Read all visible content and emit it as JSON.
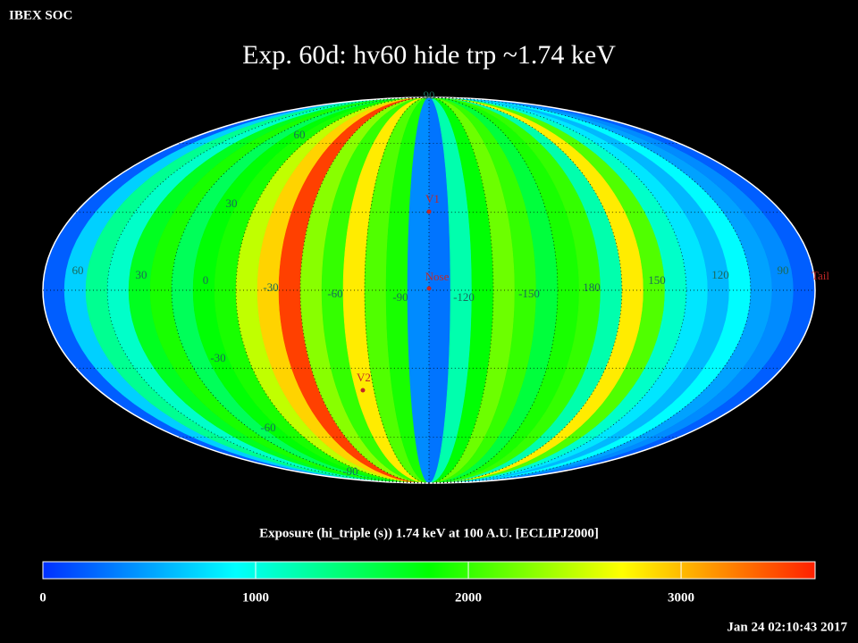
{
  "header": {
    "source": "IBEX SOC",
    "title": "Exp.   60d: hv60 hide trp ~1.74 keV",
    "timestamp": "Jan 24 02:10:43 2017"
  },
  "map": {
    "band_values": [
      200,
      700,
      1300,
      1100,
      1700,
      1900,
      1500,
      1800,
      1900,
      2500,
      2900,
      3500,
      2300,
      2000,
      2800,
      2100,
      1900,
      400,
      300,
      1200,
      1800,
      2200,
      2000,
      1600,
      1900,
      2000,
      1200,
      2800,
      2100,
      1100,
      800,
      600,
      900,
      500,
      400,
      200
    ],
    "longitude_labels": [
      "60",
      "30",
      "0",
      "-30",
      "-60",
      "-90",
      "-120",
      "-150",
      "180",
      "150",
      "120",
      "90"
    ],
    "latitude_labels": [
      "90",
      "60",
      "30",
      "-30",
      "-60",
      "-90"
    ],
    "markers": [
      "V1",
      "Nose",
      "V2"
    ],
    "tail_label": "Tail"
  },
  "colorbar": {
    "label": "Exposure (hi_triple (s))  1.74 keV at 100 A.U. [ECLIPJ2000]",
    "lim": [
      0,
      3630
    ],
    "ticks": [
      0,
      1000,
      2000,
      3000
    ],
    "colormap": [
      "#0030ff",
      "#00ffff",
      "#00ff00",
      "#ffff00",
      "#ff2000"
    ]
  }
}
